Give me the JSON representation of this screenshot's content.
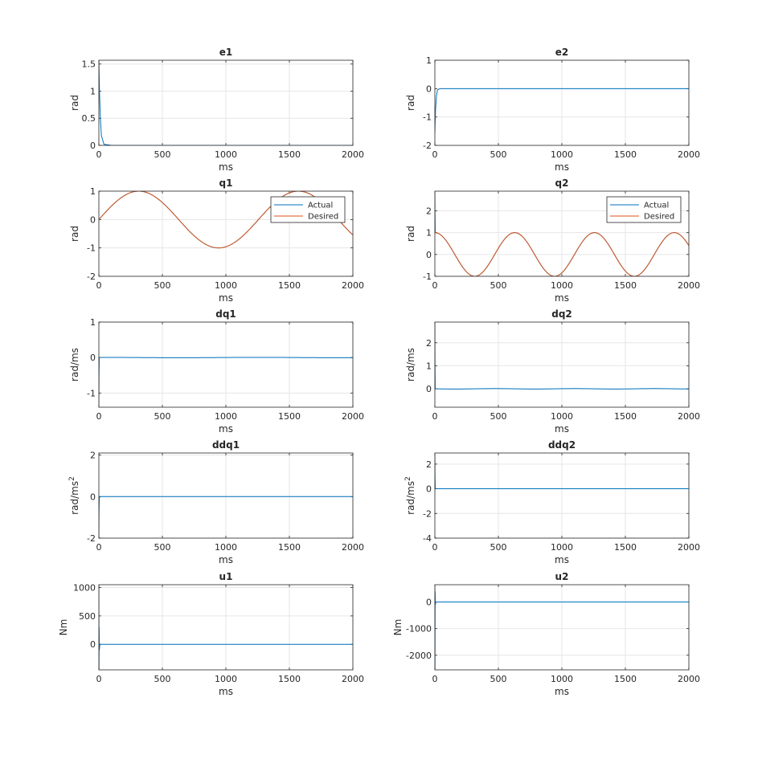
{
  "figure": {
    "colors": {
      "actual": "#0072bd",
      "desired": "#d95319",
      "grid": "#e6e6e6",
      "axis": "#262626"
    },
    "grid": true
  },
  "chart_data": [
    {
      "id": "e1",
      "type": "line",
      "title": "e1",
      "xlabel": "ms",
      "ylabel": "rad",
      "xlim": [
        0,
        2000
      ],
      "ylim": [
        0,
        1.57
      ],
      "xticks": [
        0,
        500,
        1000,
        1500,
        2000
      ],
      "yticks": [
        0,
        0.5,
        1,
        1.5
      ],
      "legend": null,
      "series": [
        {
          "key": "actual",
          "x": [
            0,
            2,
            6,
            12,
            20,
            40,
            100,
            500,
            1000,
            1500,
            2000
          ],
          "y": [
            1.57,
            1.3,
            0.9,
            0.5,
            0.18,
            0.02,
            0.0,
            0.0,
            0.0,
            0.0,
            0.0
          ]
        }
      ]
    },
    {
      "id": "e2",
      "type": "line",
      "title": "e2",
      "xlabel": "ms",
      "ylabel": "rad",
      "xlim": [
        0,
        2000
      ],
      "ylim": [
        -2,
        1
      ],
      "xticks": [
        0,
        500,
        1000,
        1500,
        2000
      ],
      "yticks": [
        -2,
        -1,
        0,
        1
      ],
      "legend": null,
      "series": [
        {
          "key": "actual",
          "x": [
            0,
            2,
            6,
            12,
            20,
            40,
            100,
            500,
            1000,
            1500,
            2000
          ],
          "y": [
            -1.57,
            -1.2,
            -0.7,
            -0.3,
            -0.05,
            0.0,
            0.0,
            0.0,
            0.0,
            0.0,
            0.0
          ]
        }
      ]
    },
    {
      "id": "q1",
      "type": "line",
      "title": "q1",
      "xlabel": "ms",
      "ylabel": "rad",
      "xlim": [
        0,
        2000
      ],
      "ylim": [
        -2,
        1
      ],
      "xticks": [
        0,
        500,
        1000,
        1500,
        2000
      ],
      "yticks": [
        -2,
        -1,
        0,
        1
      ],
      "legend": {
        "entries": [
          "Actual",
          "Desired"
        ],
        "position": "top-right"
      },
      "series": [
        {
          "name": "Actual",
          "key": "actual",
          "fn": "sin",
          "amp": 1,
          "omega": 0.005,
          "phase": 0,
          "offset": 0
        },
        {
          "name": "Desired",
          "key": "desired",
          "fn": "sin",
          "amp": 1,
          "omega": 0.005,
          "phase": 0,
          "offset": 0
        }
      ]
    },
    {
      "id": "q2",
      "type": "line",
      "title": "q2",
      "xlabel": "ms",
      "ylabel": "rad",
      "xlim": [
        0,
        2000
      ],
      "ylim": [
        -1,
        2.9
      ],
      "xticks": [
        0,
        500,
        1000,
        1500,
        2000
      ],
      "yticks": [
        -1,
        0,
        1,
        2
      ],
      "legend": {
        "entries": [
          "Actual",
          "Desired"
        ],
        "position": "top-right"
      },
      "series": [
        {
          "name": "Actual",
          "key": "actual",
          "fn": "cos",
          "amp": 1,
          "omega": 0.01,
          "phase": 0,
          "offset": 0,
          "start": {
            "x": [
              0,
              1,
              3
            ],
            "y": [
              2.9,
              2.0,
              1.0
            ]
          }
        },
        {
          "name": "Desired",
          "key": "desired",
          "fn": "cos",
          "amp": 1,
          "omega": 0.01,
          "phase": 0,
          "offset": 0
        }
      ]
    },
    {
      "id": "dq1",
      "type": "line",
      "title": "dq1",
      "xlabel": "ms",
      "ylabel": "rad/ms",
      "xlim": [
        0,
        2000
      ],
      "ylim": [
        -1.4,
        1
      ],
      "xticks": [
        0,
        500,
        1000,
        1500,
        2000
      ],
      "yticks": [
        -1,
        0,
        1
      ],
      "legend": null,
      "series": [
        {
          "key": "actual",
          "fn": "cos",
          "amp": 0.005,
          "omega": 0.005,
          "phase": 0,
          "offset": 0,
          "start": {
            "x": [
              0,
              1,
              3
            ],
            "y": [
              -1.4,
              -0.5,
              0.0
            ]
          }
        }
      ]
    },
    {
      "id": "dq2",
      "type": "line",
      "title": "dq2",
      "xlabel": "ms",
      "ylabel": "rad/ms",
      "xlim": [
        0,
        2000
      ],
      "ylim": [
        -0.8,
        2.9
      ],
      "xticks": [
        0,
        500,
        1000,
        1500,
        2000
      ],
      "yticks": [
        0,
        1,
        2
      ],
      "legend": null,
      "series": [
        {
          "key": "actual",
          "fn": "sin",
          "amp": -0.01,
          "omega": 0.01,
          "phase": 0,
          "offset": 0,
          "start": {
            "x": [
              0,
              1,
              3
            ],
            "y": [
              2.9,
              1.2,
              0.0
            ]
          }
        }
      ]
    },
    {
      "id": "ddq1",
      "type": "line",
      "title": "ddq1",
      "xlabel": "ms",
      "ylabel": "rad/ms",
      "ylabel_sup": "2",
      "xlim": [
        0,
        2000
      ],
      "ylim": [
        -2,
        2.1
      ],
      "xticks": [
        0,
        500,
        1000,
        1500,
        2000
      ],
      "yticks": [
        -2,
        0,
        2
      ],
      "legend": null,
      "series": [
        {
          "key": "actual",
          "x": [
            0,
            1,
            3,
            8,
            500,
            1000,
            1500,
            2000
          ],
          "y": [
            -2.0,
            -0.8,
            -0.1,
            0.0,
            0.0,
            0.0,
            0.0,
            0.0
          ]
        }
      ]
    },
    {
      "id": "ddq2",
      "type": "line",
      "title": "ddq2",
      "xlabel": "ms",
      "ylabel": "rad/ms",
      "ylabel_sup": "2",
      "xlim": [
        0,
        2000
      ],
      "ylim": [
        -4,
        2.9
      ],
      "xticks": [
        0,
        500,
        1000,
        1500,
        2000
      ],
      "yticks": [
        -4,
        -2,
        0,
        2
      ],
      "legend": null,
      "series": [
        {
          "key": "actual",
          "x": [
            0,
            1,
            3,
            8,
            500,
            1000,
            1500,
            2000
          ],
          "y": [
            2.9,
            1.0,
            0.1,
            0.0,
            0.0,
            0.0,
            0.0,
            0.0
          ]
        }
      ]
    },
    {
      "id": "u1",
      "type": "line",
      "title": "u1",
      "xlabel": "ms",
      "ylabel": "Nm",
      "xlim": [
        0,
        2000
      ],
      "ylim": [
        -450,
        1050
      ],
      "xticks": [
        0,
        500,
        1000,
        1500,
        2000
      ],
      "yticks": [
        0,
        500,
        1000
      ],
      "legend": null,
      "series": [
        {
          "key": "actual",
          "x": [
            0,
            1,
            2,
            4,
            8,
            500,
            1000,
            1500,
            2000
          ],
          "y": [
            1050,
            -450,
            300,
            -100,
            0,
            0,
            0,
            0,
            0
          ]
        }
      ]
    },
    {
      "id": "u2",
      "type": "line",
      "title": "u2",
      "xlabel": "ms",
      "ylabel": "Nm",
      "xlim": [
        0,
        2000
      ],
      "ylim": [
        -2550,
        650
      ],
      "xticks": [
        0,
        500,
        1000,
        1500,
        2000
      ],
      "yticks": [
        -2000,
        -1000,
        0
      ],
      "legend": null,
      "series": [
        {
          "key": "actual",
          "x": [
            0,
            1,
            2,
            4,
            8,
            500,
            1000,
            1500,
            2000
          ],
          "y": [
            650,
            -2550,
            400,
            -100,
            0,
            0,
            0,
            0,
            0
          ]
        }
      ]
    }
  ]
}
